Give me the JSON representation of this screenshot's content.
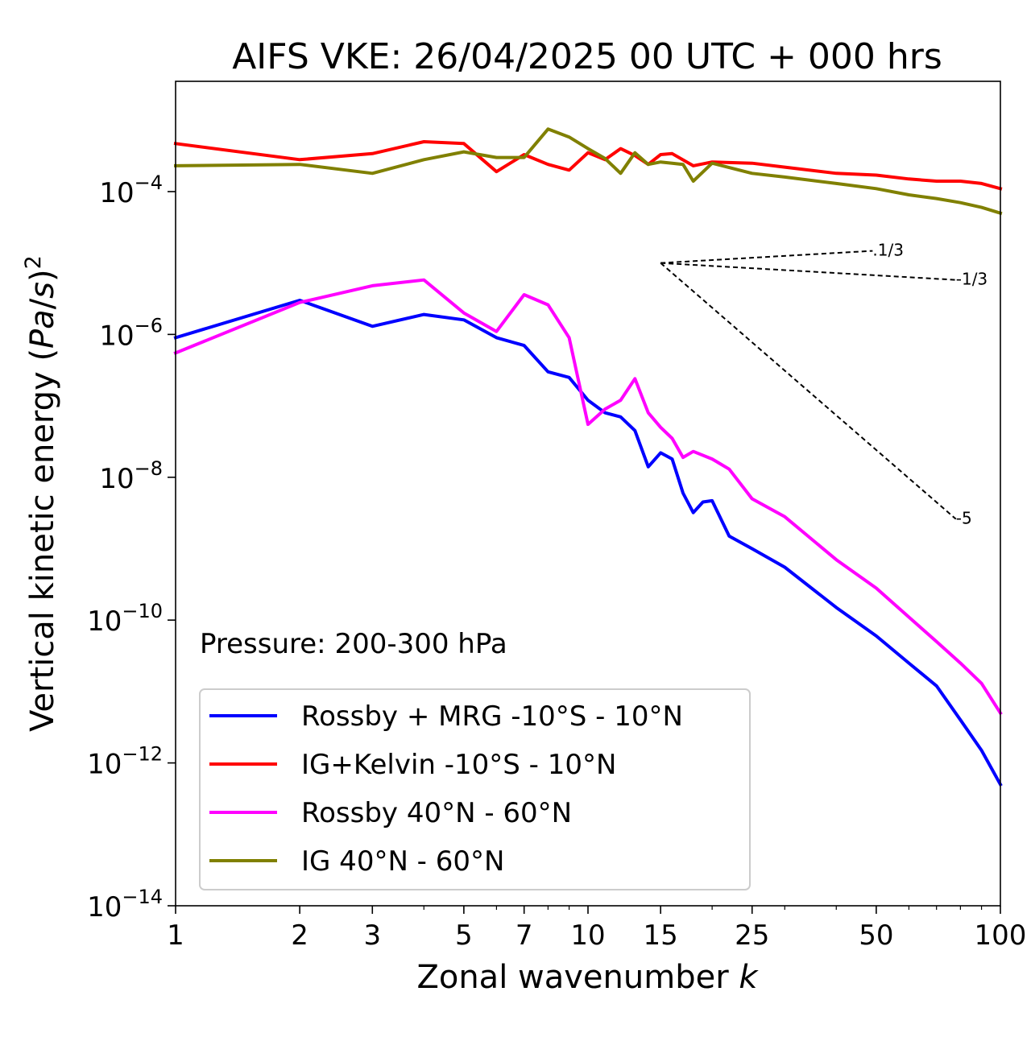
{
  "chart_data": {
    "type": "line",
    "title": "AIFS VKE: 26/04/2025 00 UTC + 000 hrs",
    "xlabel": "Zonal wavenumber k",
    "ylabel": "Vertical kinetic energy (Pa/s)²",
    "xscale": "log",
    "yscale": "log",
    "xlim": [
      1,
      100
    ],
    "ylim": [
      1e-14,
      0.0035
    ],
    "x_ticks": [
      {
        "value": 1,
        "label": "1"
      },
      {
        "value": 2,
        "label": "2"
      },
      {
        "value": 3,
        "label": "3"
      },
      {
        "value": 5,
        "label": "5"
      },
      {
        "value": 7,
        "label": "7"
      },
      {
        "value": 10,
        "label": "10"
      },
      {
        "value": 15,
        "label": "15"
      },
      {
        "value": 25,
        "label": "25"
      },
      {
        "value": 50,
        "label": "50"
      },
      {
        "value": 100,
        "label": "100"
      }
    ],
    "y_ticks": [
      {
        "value": 1e-14,
        "base": "10",
        "exp": "−14"
      },
      {
        "value": 1e-12,
        "base": "10",
        "exp": "−12"
      },
      {
        "value": 1e-10,
        "base": "10",
        "exp": "−10"
      },
      {
        "value": 1e-08,
        "base": "10",
        "exp": "−8"
      },
      {
        "value": 1e-06,
        "base": "10",
        "exp": "−6"
      },
      {
        "value": 0.0001,
        "base": "10",
        "exp": "−4"
      }
    ],
    "annotation": "Pressure: 200-300 hPa",
    "legend_position": "lower-left",
    "series": [
      {
        "name": "Rossby + MRG -10°S - 10°N",
        "color": "#0000ff",
        "x": [
          1,
          2,
          3,
          4,
          5,
          6,
          7,
          8,
          9,
          10,
          11,
          12,
          13,
          14,
          15,
          16,
          17,
          18,
          19,
          20,
          22,
          25,
          30,
          40,
          50,
          60,
          70,
          80,
          90,
          100
        ],
        "y": [
          9e-07,
          3e-06,
          1.3e-06,
          1.9e-06,
          1.6e-06,
          9e-07,
          7e-07,
          3e-07,
          2.5e-07,
          1.2e-07,
          8e-08,
          7e-08,
          4.5e-08,
          1.4e-08,
          2.2e-08,
          1.8e-08,
          6e-09,
          3.2e-09,
          4.5e-09,
          4.7e-09,
          1.5e-09,
          1e-09,
          5.5e-10,
          1.5e-10,
          6e-11,
          2.5e-11,
          1.2e-11,
          4e-12,
          1.5e-12,
          5e-13
        ]
      },
      {
        "name": "IG+Kelvin -10°S - 10°N",
        "color": "#ff0000",
        "x": [
          1,
          2,
          3,
          4,
          5,
          6,
          7,
          8,
          9,
          10,
          11,
          12,
          13,
          14,
          15,
          16,
          18,
          20,
          25,
          30,
          40,
          50,
          60,
          70,
          80,
          90,
          100
        ],
        "y": [
          0.00047,
          0.00028,
          0.00034,
          0.0005,
          0.00047,
          0.00019,
          0.00033,
          0.00024,
          0.0002,
          0.00035,
          0.00028,
          0.0004,
          0.00032,
          0.00024,
          0.00033,
          0.00034,
          0.00023,
          0.00026,
          0.00025,
          0.00022,
          0.00018,
          0.00017,
          0.00015,
          0.00014,
          0.00014,
          0.00013,
          0.00011
        ]
      },
      {
        "name": "Rossby 40°N - 60°N",
        "color": "#ff00ff",
        "x": [
          1,
          2,
          3,
          4,
          5,
          6,
          7,
          8,
          9,
          10,
          11,
          12,
          13,
          14,
          15,
          16,
          17,
          18,
          20,
          22,
          25,
          30,
          40,
          50,
          60,
          70,
          80,
          90,
          100
        ],
        "y": [
          5.5e-07,
          2.8e-06,
          4.8e-06,
          5.8e-06,
          2e-06,
          1.1e-06,
          3.6e-06,
          2.6e-06,
          9e-07,
          5.5e-08,
          9e-08,
          1.2e-07,
          2.4e-07,
          8e-08,
          5e-08,
          3.5e-08,
          1.9e-08,
          2.3e-08,
          1.8e-08,
          1.3e-08,
          5e-09,
          2.8e-09,
          7e-10,
          2.8e-10,
          1.1e-10,
          5e-11,
          2.5e-11,
          1.3e-11,
          5e-12
        ]
      },
      {
        "name": "IG 40°N - 60°N",
        "color": "#808000",
        "x": [
          1,
          2,
          3,
          4,
          5,
          6,
          7,
          8,
          9,
          10,
          11,
          12,
          13,
          14,
          15,
          16,
          17,
          18,
          20,
          25,
          30,
          40,
          50,
          60,
          70,
          80,
          90,
          100
        ],
        "y": [
          0.00023,
          0.00024,
          0.00018,
          0.00028,
          0.00036,
          0.0003,
          0.0003,
          0.00075,
          0.00058,
          0.0004,
          0.00029,
          0.00018,
          0.00035,
          0.00024,
          0.00026,
          0.00025,
          0.00024,
          0.00014,
          0.00025,
          0.00018,
          0.00016,
          0.00013,
          0.00011,
          9e-05,
          8e-05,
          7e-05,
          6e-05,
          5e-05
        ]
      }
    ],
    "reference_lines": [
      {
        "label": ".1/3",
        "x": [
          15,
          49
        ],
        "y": [
          1e-05,
          1.48e-05
        ]
      },
      {
        "label": "-1/3",
        "x": [
          15,
          78
        ],
        "y": [
          1e-05,
          5.8e-06
        ]
      },
      {
        "label": "-5",
        "x": [
          15,
          78
        ],
        "y": [
          1e-05,
          2.6e-09
        ]
      }
    ]
  }
}
